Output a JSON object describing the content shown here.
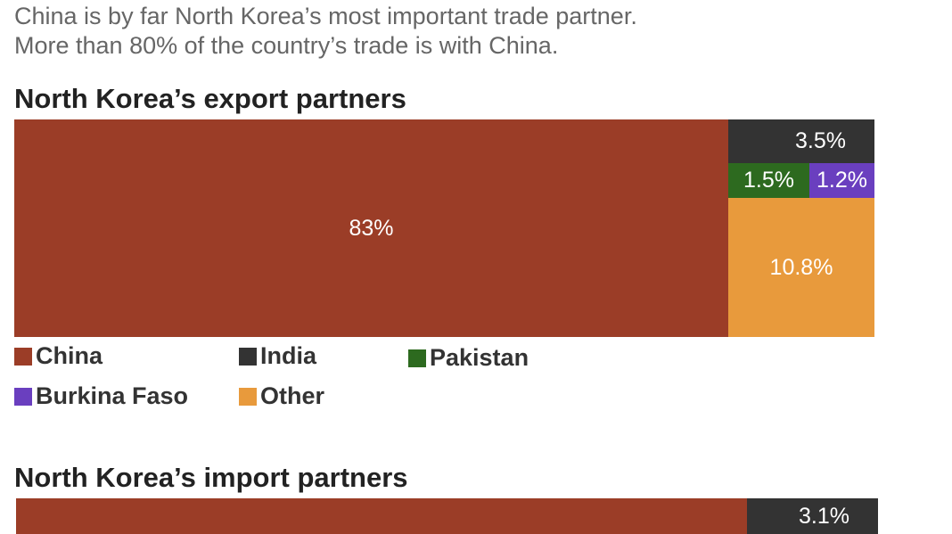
{
  "subtitle": [
    "China is by far North Korea’s most important trade partner.",
    "More than 80% of the country’s trade is with China."
  ],
  "chart_data": [
    {
      "type": "treemap",
      "title": "North Korea’s export partners",
      "series": [
        {
          "name": "China",
          "value": 83,
          "label": "83%",
          "color": "#9b3d27"
        },
        {
          "name": "India",
          "value": 3.5,
          "label": "3.5%",
          "color": "#333333"
        },
        {
          "name": "Pakistan",
          "value": 1.5,
          "label": "1.5%",
          "color": "#2d6a1f"
        },
        {
          "name": "Burkina Faso",
          "value": 1.2,
          "label": "1.2%",
          "color": "#6a3fbf"
        },
        {
          "name": "Other",
          "value": 10.8,
          "label": "10.8%",
          "color": "#e89a3c"
        }
      ]
    },
    {
      "type": "treemap",
      "title": "North Korea’s import partners",
      "series": [
        {
          "name": "China",
          "color": "#9b3d27"
        },
        {
          "value": 3.1,
          "label": "3.1%",
          "color": "#333333"
        }
      ]
    }
  ]
}
